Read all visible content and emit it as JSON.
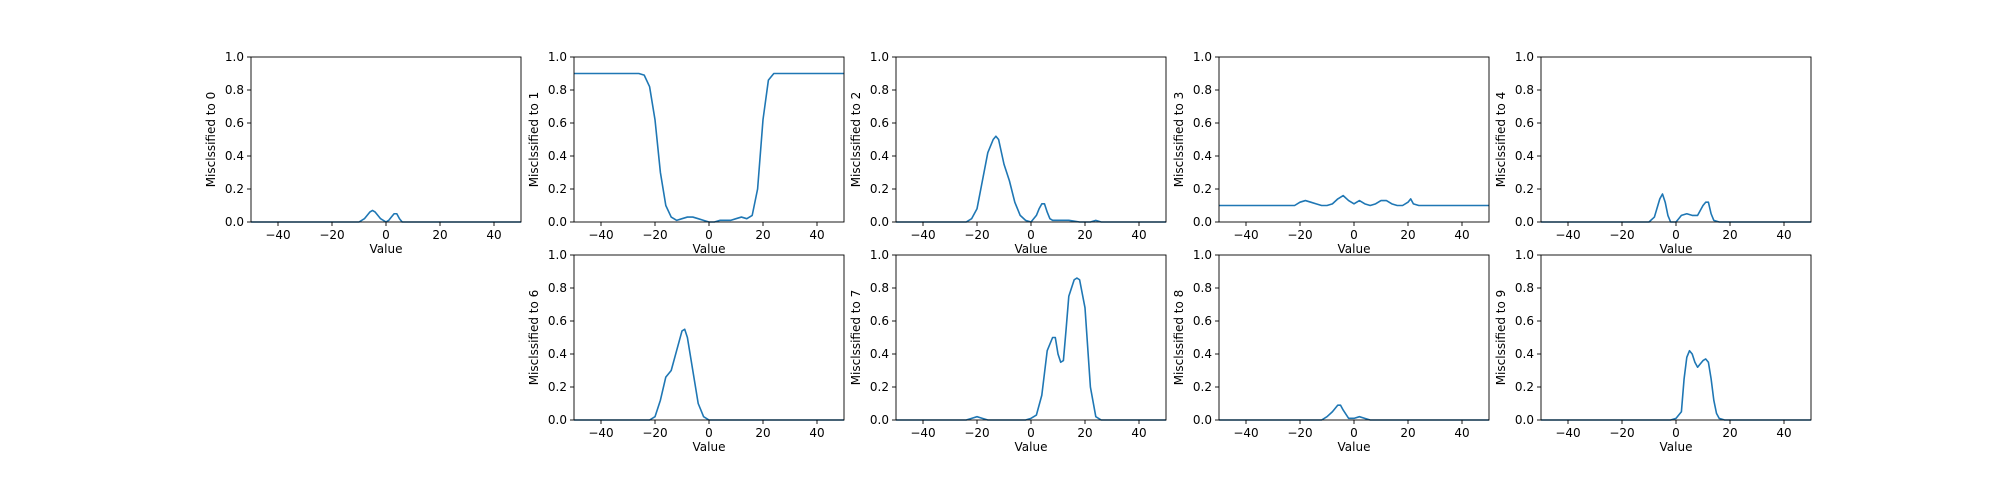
{
  "chart_data": [
    {
      "type": "line",
      "ylabel": "Misclssified to 0",
      "xlabel": "Value",
      "xlim": [
        -50,
        50
      ],
      "ylim": [
        0,
        1
      ],
      "xticks": [
        "−40",
        "−20",
        "0",
        "20",
        "40"
      ],
      "yticks": [
        "0.0",
        "0.2",
        "0.4",
        "0.6",
        "0.8",
        "1.0"
      ],
      "line_color": "#1f77b4",
      "series": [
        {
          "x": [
            -50,
            -10,
            -8,
            -6,
            -5,
            -4,
            -2,
            0,
            1,
            2,
            3,
            4,
            5,
            6,
            8,
            50
          ],
          "y": [
            0,
            0,
            0.02,
            0.06,
            0.07,
            0.06,
            0.02,
            0,
            0.01,
            0.03,
            0.05,
            0.05,
            0.02,
            0,
            0,
            0
          ]
        }
      ]
    },
    {
      "type": "line",
      "ylabel": "Misclssified to 1",
      "xlabel": "Value",
      "xlim": [
        -50,
        50
      ],
      "ylim": [
        0,
        1
      ],
      "xticks": [
        "−40",
        "−20",
        "0",
        "20",
        "40"
      ],
      "yticks": [
        "0.0",
        "0.2",
        "0.4",
        "0.6",
        "0.8",
        "1.0"
      ],
      "line_color": "#1f77b4",
      "series": [
        {
          "x": [
            -50,
            -26,
            -24,
            -22,
            -20,
            -18,
            -16,
            -14,
            -12,
            -10,
            -8,
            -6,
            -4,
            -2,
            0,
            2,
            4,
            6,
            8,
            10,
            12,
            14,
            16,
            18,
            20,
            22,
            24,
            26,
            50
          ],
          "y": [
            0.9,
            0.9,
            0.89,
            0.82,
            0.62,
            0.3,
            0.1,
            0.03,
            0.01,
            0.02,
            0.03,
            0.03,
            0.02,
            0.01,
            0,
            0,
            0.01,
            0.01,
            0.01,
            0.02,
            0.03,
            0.02,
            0.04,
            0.2,
            0.62,
            0.86,
            0.9,
            0.9,
            0.9
          ]
        }
      ]
    },
    {
      "type": "line",
      "ylabel": "Misclssified to 2",
      "xlabel": "Value",
      "xlim": [
        -50,
        50
      ],
      "ylim": [
        0,
        1
      ],
      "xticks": [
        "−40",
        "−20",
        "0",
        "20",
        "40"
      ],
      "yticks": [
        "0.0",
        "0.2",
        "0.4",
        "0.6",
        "0.8",
        "1.0"
      ],
      "line_color": "#1f77b4",
      "series": [
        {
          "x": [
            -50,
            -24,
            -22,
            -20,
            -18,
            -16,
            -14,
            -13,
            -12,
            -10,
            -8,
            -6,
            -4,
            -2,
            0,
            2,
            3,
            4,
            5,
            6,
            7,
            8,
            10,
            14,
            18,
            22,
            24,
            26,
            50
          ],
          "y": [
            0,
            0,
            0.02,
            0.08,
            0.25,
            0.42,
            0.5,
            0.52,
            0.5,
            0.35,
            0.25,
            0.12,
            0.04,
            0.01,
            0,
            0.04,
            0.08,
            0.11,
            0.11,
            0.06,
            0.02,
            0.01,
            0.01,
            0.01,
            0,
            0,
            0.01,
            0,
            0
          ]
        }
      ]
    },
    {
      "type": "line",
      "ylabel": "Misclssified to 3",
      "xlabel": "Value",
      "xlim": [
        -50,
        50
      ],
      "ylim": [
        0,
        1
      ],
      "xticks": [
        "−40",
        "−20",
        "0",
        "20",
        "40"
      ],
      "yticks": [
        "0.0",
        "0.2",
        "0.4",
        "0.6",
        "0.8",
        "1.0"
      ],
      "line_color": "#1f77b4",
      "series": [
        {
          "x": [
            -50,
            -22,
            -20,
            -18,
            -16,
            -14,
            -12,
            -10,
            -8,
            -6,
            -4,
            -2,
            0,
            2,
            4,
            6,
            8,
            10,
            12,
            14,
            16,
            18,
            20,
            21,
            22,
            24,
            50
          ],
          "y": [
            0.1,
            0.1,
            0.12,
            0.13,
            0.12,
            0.11,
            0.1,
            0.1,
            0.11,
            0.14,
            0.16,
            0.13,
            0.11,
            0.13,
            0.11,
            0.1,
            0.11,
            0.13,
            0.13,
            0.11,
            0.1,
            0.1,
            0.12,
            0.14,
            0.11,
            0.1,
            0.1
          ]
        }
      ]
    },
    {
      "type": "line",
      "ylabel": "Misclssified to 4",
      "xlabel": "Value",
      "xlim": [
        -50,
        50
      ],
      "ylim": [
        0,
        1
      ],
      "xticks": [
        "−40",
        "−20",
        "0",
        "20",
        "40"
      ],
      "yticks": [
        "0.0",
        "0.2",
        "0.4",
        "0.6",
        "0.8",
        "1.0"
      ],
      "line_color": "#1f77b4",
      "series": [
        {
          "x": [
            -50,
            -10,
            -8,
            -6,
            -5,
            -4,
            -3,
            -2,
            0,
            1,
            2,
            4,
            6,
            8,
            10,
            11,
            12,
            13,
            14,
            16,
            50
          ],
          "y": [
            0,
            0,
            0.03,
            0.14,
            0.17,
            0.12,
            0.04,
            0,
            0,
            0.02,
            0.04,
            0.05,
            0.04,
            0.04,
            0.1,
            0.12,
            0.12,
            0.05,
            0.01,
            0,
            0
          ]
        }
      ]
    },
    {
      "type": "line",
      "ylabel": "Misclssified to 6",
      "xlabel": "Value",
      "xlim": [
        -50,
        50
      ],
      "ylim": [
        0,
        1
      ],
      "xticks": [
        "−40",
        "−20",
        "0",
        "20",
        "40"
      ],
      "yticks": [
        "0.0",
        "0.2",
        "0.4",
        "0.6",
        "0.8",
        "1.0"
      ],
      "line_color": "#1f77b4",
      "series": [
        {
          "x": [
            -50,
            -22,
            -20,
            -18,
            -16,
            -14,
            -12,
            -10,
            -9,
            -8,
            -6,
            -4,
            -2,
            0,
            2,
            50
          ],
          "y": [
            0,
            0,
            0.02,
            0.12,
            0.26,
            0.3,
            0.42,
            0.54,
            0.55,
            0.5,
            0.3,
            0.1,
            0.02,
            0,
            0,
            0
          ]
        }
      ]
    },
    {
      "type": "line",
      "ylabel": "Misclssified to 7",
      "xlabel": "Value",
      "xlim": [
        -50,
        50
      ],
      "ylim": [
        0,
        1
      ],
      "xticks": [
        "−40",
        "−20",
        "0",
        "20",
        "40"
      ],
      "yticks": [
        "0.0",
        "0.2",
        "0.4",
        "0.6",
        "0.8",
        "1.0"
      ],
      "line_color": "#1f77b4",
      "series": [
        {
          "x": [
            -50,
            -24,
            -22,
            -20,
            -18,
            -16,
            -4,
            -2,
            0,
            2,
            4,
            6,
            8,
            9,
            10,
            11,
            12,
            13,
            14,
            16,
            17,
            18,
            20,
            22,
            24,
            26,
            50
          ],
          "y": [
            0,
            0,
            0.01,
            0.02,
            0.01,
            0,
            0,
            0,
            0.01,
            0.03,
            0.15,
            0.42,
            0.5,
            0.5,
            0.4,
            0.35,
            0.36,
            0.55,
            0.75,
            0.85,
            0.86,
            0.85,
            0.68,
            0.2,
            0.02,
            0,
            0
          ]
        }
      ]
    },
    {
      "type": "line",
      "ylabel": "Misclssified to 8",
      "xlabel": "Value",
      "xlim": [
        -50,
        50
      ],
      "ylim": [
        0,
        1
      ],
      "xticks": [
        "−40",
        "−20",
        "0",
        "20",
        "40"
      ],
      "yticks": [
        "0.0",
        "0.2",
        "0.4",
        "0.6",
        "0.8",
        "1.0"
      ],
      "line_color": "#1f77b4",
      "series": [
        {
          "x": [
            -50,
            -12,
            -10,
            -8,
            -6,
            -5,
            -4,
            -2,
            0,
            2,
            4,
            6,
            50
          ],
          "y": [
            0,
            0,
            0.02,
            0.05,
            0.09,
            0.09,
            0.06,
            0.01,
            0.01,
            0.02,
            0.01,
            0,
            0
          ]
        }
      ]
    },
    {
      "type": "line",
      "ylabel": "Misclssified to 9",
      "xlabel": "Value",
      "xlim": [
        -50,
        50
      ],
      "ylim": [
        0,
        1
      ],
      "xticks": [
        "−40",
        "−20",
        "0",
        "20",
        "40"
      ],
      "yticks": [
        "0.0",
        "0.2",
        "0.4",
        "0.6",
        "0.8",
        "1.0"
      ],
      "line_color": "#1f77b4",
      "series": [
        {
          "x": [
            -50,
            -2,
            0,
            2,
            3,
            4,
            5,
            6,
            7,
            8,
            9,
            10,
            11,
            12,
            13,
            14,
            15,
            16,
            18,
            50
          ],
          "y": [
            0,
            0,
            0.01,
            0.05,
            0.25,
            0.38,
            0.42,
            0.4,
            0.35,
            0.32,
            0.34,
            0.36,
            0.37,
            0.35,
            0.25,
            0.12,
            0.04,
            0.01,
            0,
            0
          ]
        }
      ]
    }
  ]
}
